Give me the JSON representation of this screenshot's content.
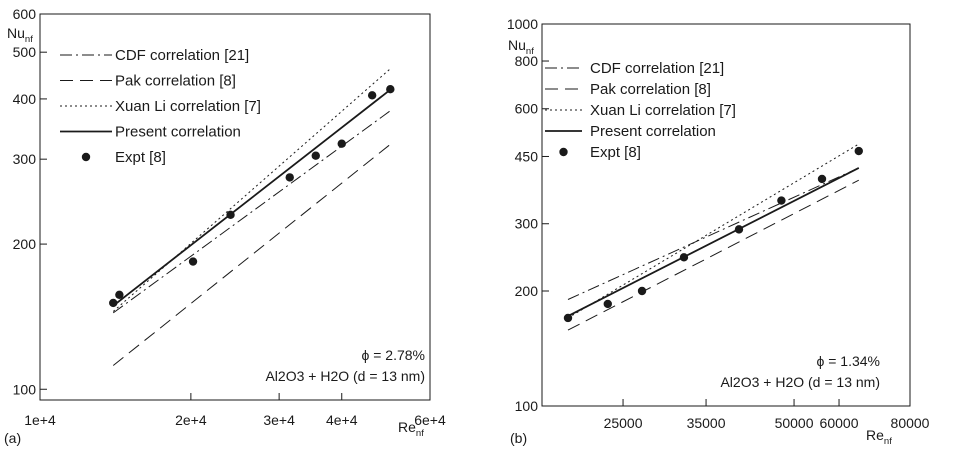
{
  "chart_data": [
    {
      "panel": "(a)",
      "type": "scatter",
      "xscale": "log",
      "yscale": "log",
      "xlim": [
        10000,
        60000
      ],
      "ylim": [
        95,
        600
      ],
      "xticks": [
        10000,
        20000,
        30000,
        40000,
        60000
      ],
      "xtick_labels": [
        "1e+4",
        "2e+4",
        "3e+4",
        "4e+4",
        "6e+4"
      ],
      "yticks": [
        100,
        200,
        300,
        400,
        500,
        600
      ],
      "ytick_labels": [
        "100",
        "200",
        "300",
        "400",
        "500",
        "600"
      ],
      "xlabel": "Re",
      "xlabel_sub": "nf",
      "ylabel": "Nu",
      "ylabel_sub": "nf",
      "grid": false,
      "legend_position": "top-left",
      "legend": [
        "CDF correlation [21]",
        "Pak correlation [8]",
        "Xuan Li correlation [7]",
        "Present correlation",
        "Expt [8]"
      ],
      "annotation_lines": [
        "ϕ = 2.78%",
        "Al2O3 + H2O (d = 13 nm)"
      ],
      "series": [
        {
          "name": "CDF correlation [21]",
          "style": "dash-dot",
          "x": [
            14000,
            50000
          ],
          "y": [
            144,
            378
          ]
        },
        {
          "name": "Pak correlation [8]",
          "style": "long-dash",
          "x": [
            14000,
            50000
          ],
          "y": [
            112,
            322
          ]
        },
        {
          "name": "Xuan Li correlation [7]",
          "style": "dotted",
          "x": [
            14000,
            50000
          ],
          "y": [
            145,
            462
          ]
        },
        {
          "name": "Present correlation",
          "style": "solid",
          "x": [
            14000,
            50000
          ],
          "y": [
            149,
            418
          ]
        },
        {
          "name": "Expt [8]",
          "style": "marker",
          "x": [
            14000,
            14400,
            20200,
            24000,
            31500,
            35500,
            40000,
            46000,
            50000
          ],
          "y": [
            151,
            157,
            184,
            230,
            275,
            305,
            323,
            407,
            419
          ]
        }
      ]
    },
    {
      "panel": "(b)",
      "type": "scatter",
      "xscale": "log",
      "yscale": "log",
      "xlim": [
        18000,
        80000
      ],
      "ylim": [
        100,
        1000
      ],
      "xticks": [
        25000,
        35000,
        50000,
        60000,
        80000
      ],
      "xtick_labels": [
        "25000",
        "35000",
        "50000",
        "60000",
        "80000"
      ],
      "yticks": [
        100,
        200,
        300,
        450,
        600,
        800,
        1000
      ],
      "ytick_labels": [
        "100",
        "200",
        "300",
        "450",
        "600",
        "800",
        "1000"
      ],
      "xlabel": "Re",
      "xlabel_sub": "nf",
      "ylabel": "Nu",
      "ylabel_sub": "nf",
      "grid": false,
      "legend_position": "top-left",
      "legend": [
        "CDF correlation [21]",
        "Pak correlation [8]",
        "Xuan Li correlation [7]",
        "Present correlation",
        "Expt [8]"
      ],
      "annotation_lines": [
        "ϕ = 1.34%",
        "Al2O3 + H2O (d = 13 nm)"
      ],
      "series": [
        {
          "name": "CDF correlation [21]",
          "style": "dash-dot",
          "x": [
            20000,
            65000
          ],
          "y": [
            190,
            420
          ]
        },
        {
          "name": "Pak correlation [8]",
          "style": "long-dash",
          "x": [
            20000,
            65000
          ],
          "y": [
            158,
            390
          ]
        },
        {
          "name": "Xuan Li correlation [7]",
          "style": "dotted",
          "x": [
            20000,
            65000
          ],
          "y": [
            170,
            485
          ]
        },
        {
          "name": "Present correlation",
          "style": "solid",
          "x": [
            20000,
            65000
          ],
          "y": [
            172,
            420
          ]
        },
        {
          "name": "Expt [8]",
          "style": "marker",
          "x": [
            20000,
            23500,
            27000,
            32000,
            40000,
            47500,
            56000,
            65000
          ],
          "y": [
            170,
            185,
            200,
            245,
            290,
            345,
            393,
            465
          ]
        }
      ]
    }
  ],
  "panel_labels": [
    "(a)",
    "(b)"
  ],
  "colors": {
    "ink": "#1a1a1a",
    "background": "#ffffff"
  }
}
